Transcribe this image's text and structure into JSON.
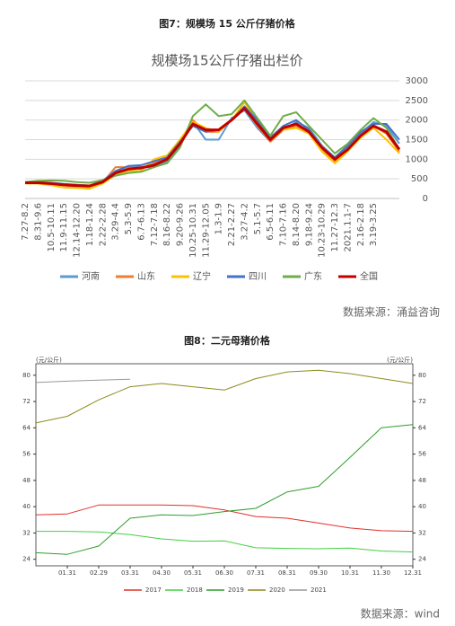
{
  "chart_data": [
    {
      "type": "line",
      "caption": "图7：规模场 15 公斤仔猪价格",
      "title": "规模场15公斤仔猪出栏价",
      "source": "数据来源：涌益咨询",
      "categories": [
        "7.27-8.2",
        "8.31-9.6",
        "10.5-10.11",
        "11.9-11.15",
        "12.14-12.20",
        "1.18-1.24",
        "2.22-2.28",
        "3.29-4.4",
        "5.3-5.9",
        "6.7-6.13",
        "7.12-7.18",
        "8.16-8.22",
        "9.20-9.26",
        "10.25-10.31",
        "11.29-12.05",
        "1.3-1.9",
        "2.21-2.27",
        "3.27-4.2",
        "5.1-5.7",
        "6.5-6.11",
        "7.10-7.16",
        "8.14-8.20",
        "9.18-9.24",
        "10.23-10.29",
        "11.27-12.3",
        "2021.1.1-7",
        "2.16-2.18",
        "3.19-3.25",
        null,
        null
      ],
      "series": [
        {
          "name": "河南",
          "color": "#5b9bd5",
          "values": [
            400,
            390,
            370,
            340,
            310,
            300,
            430,
            700,
            820,
            800,
            800,
            950,
            1350,
            1950,
            1500,
            1500,
            2050,
            2250,
            1800,
            1450,
            1750,
            1950,
            1800,
            1350,
            1050,
            1300,
            1650,
            1950,
            1850,
            1400
          ]
        },
        {
          "name": "山东",
          "color": "#ed7d31",
          "values": [
            390,
            400,
            370,
            330,
            300,
            290,
            400,
            800,
            800,
            750,
            900,
            1050,
            1450,
            2000,
            1700,
            1700,
            2000,
            2300,
            1850,
            1450,
            1750,
            1850,
            1650,
            1250,
            950,
            1250,
            1600,
            1850,
            1650,
            1200
          ]
        },
        {
          "name": "辽宁",
          "color": "#ffc000",
          "values": [
            380,
            380,
            340,
            280,
            270,
            250,
            380,
            600,
            700,
            700,
            1000,
            1100,
            1500,
            1950,
            1800,
            1700,
            2000,
            2450,
            1950,
            1600,
            1750,
            1800,
            1650,
            1200,
            900,
            1200,
            1550,
            1800,
            1500,
            1150
          ]
        },
        {
          "name": "四川",
          "color": "#4472c4",
          "values": [
            400,
            420,
            400,
            370,
            350,
            330,
            450,
            700,
            830,
            850,
            950,
            1050,
            1450,
            1850,
            1700,
            1750,
            2000,
            2350,
            2000,
            1550,
            1850,
            2000,
            1750,
            1300,
            1050,
            1350,
            1700,
            1900,
            1900,
            1500
          ]
        },
        {
          "name": "广东",
          "color": "#70ad47",
          "values": [
            420,
            450,
            460,
            450,
            420,
            400,
            470,
            580,
            650,
            680,
            800,
            900,
            1300,
            2100,
            2400,
            2100,
            2150,
            2500,
            2050,
            1600,
            2100,
            2200,
            1850,
            1500,
            1150,
            1400,
            1750,
            2050,
            1800,
            1250
          ]
        },
        {
          "name": "全国",
          "color": "#c00000",
          "values": [
            400,
            400,
            380,
            350,
            330,
            320,
            420,
            650,
            750,
            780,
            850,
            1000,
            1400,
            1900,
            1750,
            1750,
            2000,
            2300,
            1900,
            1500,
            1800,
            1900,
            1700,
            1300,
            1000,
            1250,
            1600,
            1850,
            1700,
            1250
          ]
        }
      ],
      "ylim": [
        0,
        3000
      ],
      "yticks": [
        0,
        500,
        1000,
        1500,
        2000,
        2500,
        3000
      ],
      "grid": true,
      "legend": "bottom"
    },
    {
      "type": "line",
      "caption": "图8：二元母猪价格",
      "source": "数据来源：wind",
      "y_label": "(元/公斤)",
      "y2_label": "(元/公斤)",
      "categories": [
        null,
        "01.31",
        "02.29",
        "03.31",
        "04.30",
        "05.31",
        "06.30",
        "07.31",
        "08.31",
        "09.30",
        "10.31",
        "11.30",
        "12.31"
      ],
      "series": [
        {
          "name": "2017",
          "color": "#e0302a",
          "values": [
            37.5,
            37.8,
            40.5,
            40.5,
            40.5,
            40.3,
            39,
            37,
            36.5,
            35,
            33.5,
            32.7,
            32.5
          ]
        },
        {
          "name": "2018",
          "color": "#44d044",
          "values": [
            32.5,
            32.5,
            32.3,
            31.5,
            30.2,
            29.5,
            29.6,
            27.5,
            27.3,
            27.2,
            27.4,
            26.5,
            26.2
          ]
        },
        {
          "name": "2019",
          "color": "#2e9e2e",
          "values": [
            26,
            25.5,
            28,
            36.5,
            37.5,
            37.3,
            38.5,
            39.5,
            44.5,
            46.2,
            55,
            64,
            65
          ]
        },
        {
          "name": "2020",
          "color": "#8c8c1e",
          "values": [
            65.5,
            67.5,
            72.5,
            76.5,
            77.5,
            76.5,
            75.5,
            79,
            81,
            81.5,
            80.5,
            79,
            77.5
          ]
        },
        {
          "name": "2021",
          "color": "#999999",
          "values": [
            77.8,
            78.2,
            78.5,
            78.8,
            null,
            null,
            null,
            null,
            null,
            null,
            null,
            null,
            null
          ]
        }
      ],
      "ylim": [
        22,
        83.5
      ],
      "yticks": [
        24,
        32,
        40,
        48,
        56,
        64,
        72,
        80
      ],
      "y2lim": [
        22,
        83.5
      ],
      "y2ticks": [
        24,
        32,
        40,
        48,
        56,
        64,
        72,
        80
      ],
      "grid": false,
      "legend": "bottom"
    }
  ]
}
